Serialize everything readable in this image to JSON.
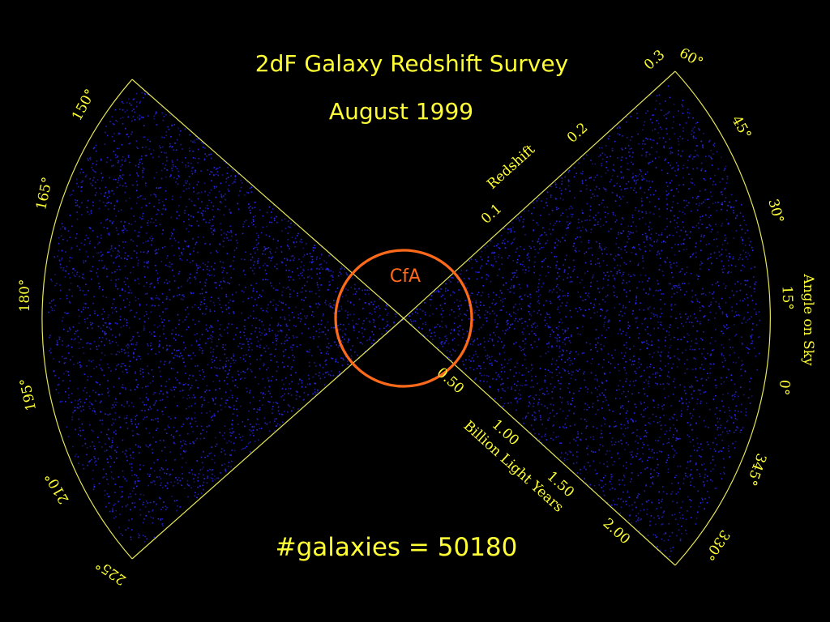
{
  "title": "2dF Galaxy Redshift Survey",
  "subtitle": "August 1999",
  "galaxy_count_label": "#galaxies = 50180",
  "inner_region_label": "CfA",
  "colors": {
    "background": "#000000",
    "text": "#ffff33",
    "axis": "#e6e65a",
    "galaxies": "#2a2aff",
    "cfa_circle": "#ff6a1a"
  },
  "left_angle_ticks": [
    "150°",
    "165°",
    "180°",
    "195°",
    "210°",
    "225°"
  ],
  "right_angle_ticks": [
    "60°",
    "45°",
    "30°",
    "15°",
    "0°",
    "345°",
    "330°"
  ],
  "angle_axis_label": "Angle on Sky",
  "redshift_axis_label": "Redshift",
  "redshift_ticks": [
    "0.1",
    "0.2",
    "0.3"
  ],
  "distance_axis_label": "Billion Light Years",
  "distance_ticks": [
    "0.50",
    "1.00",
    "1.50",
    "2.00"
  ]
}
